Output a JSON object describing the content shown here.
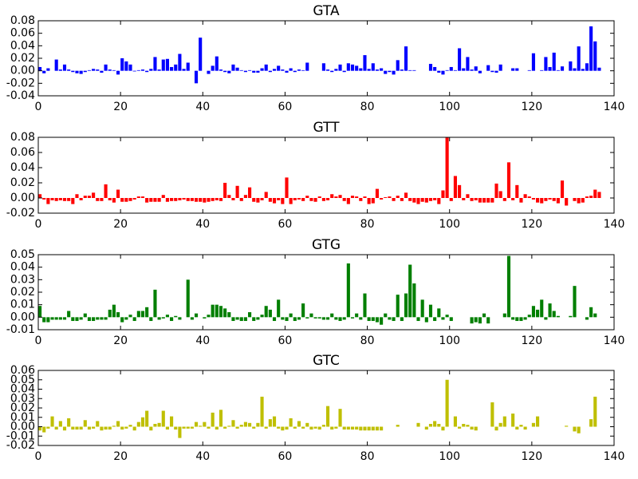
{
  "chart_data": [
    {
      "type": "bar",
      "title": "GTA",
      "color": "#0000ff",
      "x": [
        0,
        1,
        2,
        3,
        4,
        5,
        6,
        7,
        8,
        9,
        10,
        11,
        12,
        13,
        14,
        15,
        16,
        17,
        18,
        19,
        20,
        21,
        22,
        23,
        24,
        25,
        26,
        27,
        28,
        29,
        30,
        31,
        32,
        33,
        34,
        35,
        36,
        37,
        38,
        39,
        40,
        41,
        42,
        43,
        44,
        45,
        46,
        47,
        48,
        49,
        50,
        51,
        52,
        53,
        54,
        55,
        56,
        57,
        58,
        59,
        60,
        61,
        62,
        63,
        64,
        65,
        66,
        67,
        68,
        69,
        70,
        71,
        72,
        73,
        74,
        75,
        76,
        77,
        78,
        79,
        80,
        81,
        82,
        83,
        84,
        85,
        86,
        87,
        88,
        89,
        90,
        91,
        92,
        93,
        94,
        95,
        96,
        97,
        98,
        99,
        100,
        101,
        102,
        103,
        104,
        105,
        106,
        107,
        108,
        109,
        110,
        111,
        112,
        113,
        114,
        115,
        116,
        117,
        118,
        119,
        120,
        121,
        122,
        123,
        124,
        125,
        126,
        127,
        128,
        129,
        130,
        131,
        132,
        133,
        134,
        135,
        136
      ],
      "values": [
        0.006,
        -0.004,
        0.004,
        0,
        0.018,
        0.002,
        0.01,
        0.002,
        -0.002,
        -0.004,
        -0.005,
        -0.002,
        0.001,
        0.003,
        0.002,
        -0.003,
        0.01,
        0.002,
        0.001,
        -0.006,
        0.02,
        0.015,
        0.01,
        -0.001,
        0.001,
        0.002,
        -0.002,
        0.003,
        0.022,
        0.002,
        0.018,
        0.019,
        0.006,
        0.01,
        0.027,
        0.003,
        0.013,
        0,
        -0.02,
        0.053,
        0,
        -0.005,
        0.008,
        0.023,
        0.002,
        -0.002,
        -0.004,
        0.01,
        0.005,
        0.001,
        -0.002,
        0.001,
        -0.003,
        -0.003,
        0.004,
        0.01,
        -0.002,
        0.003,
        0.008,
        0.002,
        -0.003,
        0.004,
        -0.002,
        0.002,
        0.001,
        0.013,
        0,
        0,
        0,
        0.012,
        0.002,
        -0.002,
        0.003,
        0.01,
        -0.002,
        0.012,
        0.01,
        0.008,
        0.004,
        0.025,
        0.003,
        0.012,
        0.002,
        0.004,
        -0.005,
        -0.002,
        -0.006,
        0.017,
        0.002,
        0.039,
        0.001,
        0.001,
        0,
        0,
        0,
        0.011,
        0.006,
        -0.003,
        -0.006,
        0.001,
        0.006,
        0.001,
        0.036,
        0.004,
        0.022,
        0.002,
        0.007,
        -0.004,
        0,
        0.009,
        -0.002,
        -0.003,
        0.01,
        0,
        0,
        0.004,
        0.004,
        0,
        0,
        0.001,
        0.028,
        0,
        0.001,
        0.022,
        0.006,
        0.029,
        0.001,
        0.007,
        0,
        0.015,
        0.004,
        0.039,
        0.003,
        0.012,
        0.071,
        0.047,
        0.005
      ],
      "xlim": [
        0,
        140
      ],
      "xticks": [
        0,
        20,
        40,
        60,
        80,
        100,
        120,
        140
      ],
      "ylim": [
        -0.04,
        0.08
      ],
      "yticks": [
        -0.04,
        -0.02,
        {
          "value": 0,
          "label": "0.00"
        },
        0.02,
        0.04,
        0.06,
        0.08
      ]
    },
    {
      "type": "bar",
      "title": "GTT",
      "color": "#ff0000",
      "x": [
        0,
        1,
        2,
        3,
        4,
        5,
        6,
        7,
        8,
        9,
        10,
        11,
        12,
        13,
        14,
        15,
        16,
        17,
        18,
        19,
        20,
        21,
        22,
        23,
        24,
        25,
        26,
        27,
        28,
        29,
        30,
        31,
        32,
        33,
        34,
        35,
        36,
        37,
        38,
        39,
        40,
        41,
        42,
        43,
        44,
        45,
        46,
        47,
        48,
        49,
        50,
        51,
        52,
        53,
        54,
        55,
        56,
        57,
        58,
        59,
        60,
        61,
        62,
        63,
        64,
        65,
        66,
        67,
        68,
        69,
        70,
        71,
        72,
        73,
        74,
        75,
        76,
        77,
        78,
        79,
        80,
        81,
        82,
        83,
        84,
        85,
        86,
        87,
        88,
        89,
        90,
        91,
        92,
        93,
        94,
        95,
        96,
        97,
        98,
        99,
        100,
        101,
        102,
        103,
        104,
        105,
        106,
        107,
        108,
        109,
        110,
        111,
        112,
        113,
        114,
        115,
        116,
        117,
        118,
        119,
        120,
        121,
        122,
        123,
        124,
        125,
        126,
        127,
        128,
        129,
        130,
        131,
        132,
        133,
        134,
        135,
        136
      ],
      "values": [
        0.005,
        -0.002,
        -0.008,
        -0.003,
        -0.004,
        -0.003,
        -0.004,
        -0.004,
        -0.008,
        0.005,
        -0.003,
        0.003,
        0.003,
        0.007,
        -0.004,
        -0.004,
        0.018,
        -0.003,
        -0.006,
        0.011,
        -0.005,
        -0.005,
        -0.004,
        -0.002,
        0.002,
        0.002,
        -0.006,
        -0.005,
        -0.005,
        -0.005,
        0.004,
        -0.005,
        -0.004,
        -0.004,
        -0.003,
        -0.002,
        -0.004,
        -0.004,
        -0.005,
        -0.005,
        -0.006,
        -0.005,
        -0.004,
        -0.003,
        -0.004,
        0.02,
        0.004,
        -0.003,
        0.016,
        -0.004,
        0.004,
        0.014,
        -0.005,
        -0.006,
        -0.003,
        0.008,
        -0.005,
        -0.007,
        -0.003,
        -0.008,
        0.027,
        -0.008,
        -0.003,
        -0.002,
        -0.004,
        0.003,
        -0.004,
        -0.005,
        0.002,
        -0.004,
        -0.003,
        0.005,
        0.002,
        0.004,
        -0.004,
        -0.008,
        0.003,
        0.002,
        -0.004,
        0.002,
        -0.008,
        -0.007,
        0.012,
        -0.002,
        0.001,
        0.002,
        -0.004,
        0.003,
        -0.004,
        0.007,
        -0.004,
        -0.006,
        -0.008,
        -0.005,
        -0.006,
        -0.004,
        -0.003,
        -0.008,
        0.01,
        0.08,
        -0.004,
        0.029,
        0.017,
        -0.003,
        0.005,
        -0.004,
        -0.003,
        -0.006,
        -0.006,
        -0.006,
        -0.006,
        0.019,
        0.009,
        -0.004,
        0.047,
        -0.003,
        0.017,
        -0.006,
        0.005,
        0.002,
        -0.002,
        -0.006,
        -0.007,
        -0.004,
        -0.002,
        -0.004,
        -0.007,
        0.023,
        -0.01,
        0,
        -0.004,
        -0.007,
        -0.006,
        0.002,
        0.003,
        0.011,
        0.008
      ],
      "xlim": [
        0,
        140
      ],
      "xticks": [
        0,
        20,
        40,
        60,
        80,
        100,
        120,
        140
      ],
      "ylim": [
        -0.02,
        0.08
      ],
      "yticks": [
        -0.02,
        {
          "value": 0,
          "label": "0.00"
        },
        0.02,
        0.04,
        0.06,
        0.08
      ]
    },
    {
      "type": "bar",
      "title": "GTG",
      "color": "#007f00",
      "x": [
        0,
        1,
        2,
        3,
        4,
        5,
        6,
        7,
        8,
        9,
        10,
        11,
        12,
        13,
        14,
        15,
        16,
        17,
        18,
        19,
        20,
        21,
        22,
        23,
        24,
        25,
        26,
        27,
        28,
        29,
        30,
        31,
        32,
        33,
        34,
        35,
        36,
        37,
        38,
        39,
        40,
        41,
        42,
        43,
        44,
        45,
        46,
        47,
        48,
        49,
        50,
        51,
        52,
        53,
        54,
        55,
        56,
        57,
        58,
        59,
        60,
        61,
        62,
        63,
        64,
        65,
        66,
        67,
        68,
        69,
        70,
        71,
        72,
        73,
        74,
        75,
        76,
        77,
        78,
        79,
        80,
        81,
        82,
        83,
        84,
        85,
        86,
        87,
        88,
        89,
        90,
        91,
        92,
        93,
        94,
        95,
        96,
        97,
        98,
        99,
        100,
        101,
        102,
        103,
        104,
        105,
        106,
        107,
        108,
        109,
        110,
        111,
        112,
        113,
        114,
        115,
        116,
        117,
        118,
        119,
        120,
        121,
        122,
        123,
        124,
        125,
        126,
        127,
        128,
        129,
        130,
        131,
        132,
        133,
        134,
        135,
        136
      ],
      "values": [
        0.009,
        -0.004,
        -0.004,
        -0.002,
        -0.002,
        -0.002,
        -0.002,
        0.005,
        -0.003,
        -0.003,
        -0.002,
        0.003,
        -0.003,
        -0.003,
        -0.002,
        -0.002,
        -0.002,
        0.006,
        0.01,
        0.004,
        -0.004,
        -0.002,
        0.002,
        -0.003,
        0.005,
        0.005,
        0.008,
        -0.003,
        0.022,
        -0.002,
        -0.001,
        0.002,
        -0.003,
        0.001,
        -0.002,
        0,
        0.03,
        -0.002,
        0.003,
        0,
        -0.001,
        0.002,
        0.01,
        0.01,
        0.009,
        0.007,
        0.004,
        -0.003,
        -0.002,
        -0.003,
        -0.003,
        0.004,
        -0.003,
        -0.002,
        0.002,
        0.009,
        0.006,
        -0.003,
        0.014,
        -0.002,
        -0.003,
        0.003,
        -0.003,
        -0.002,
        0.011,
        -0.001,
        0.003,
        -0.001,
        -0.001,
        -0.002,
        -0.002,
        0.003,
        -0.002,
        -0.003,
        -0.002,
        0.043,
        -0.001,
        0.003,
        -0.002,
        0.019,
        -0.003,
        -0.003,
        -0.004,
        -0.006,
        0.003,
        -0.002,
        -0.003,
        0.018,
        -0.003,
        0.019,
        0.042,
        0.027,
        -0.003,
        0.014,
        -0.004,
        0.01,
        -0.003,
        0.007,
        -0.002,
        0.002,
        -0.003,
        0,
        0,
        0,
        0,
        -0.005,
        -0.004,
        -0.005,
        0.003,
        -0.005,
        0,
        0,
        0,
        0.003,
        0.049,
        -0.002,
        -0.003,
        -0.003,
        -0.002,
        0.002,
        0.009,
        0.006,
        0.014,
        -0.002,
        0.011,
        0.005,
        0.001,
        0,
        0,
        0.001,
        0.025,
        0,
        0,
        -0.002,
        0.008,
        0.003,
        0
      ],
      "xlim": [
        0,
        140
      ],
      "xticks": [
        0,
        20,
        40,
        60,
        80,
        100,
        120,
        140
      ],
      "ylim": [
        -0.01,
        0.05
      ],
      "yticks": [
        -0.01,
        {
          "value": 0,
          "label": "0.00"
        },
        0.01,
        0.02,
        0.03,
        0.04,
        0.05
      ]
    },
    {
      "type": "bar",
      "title": "GTC",
      "color": "#bfbf00",
      "x": [
        0,
        1,
        2,
        3,
        4,
        5,
        6,
        7,
        8,
        9,
        10,
        11,
        12,
        13,
        14,
        15,
        16,
        17,
        18,
        19,
        20,
        21,
        22,
        23,
        24,
        25,
        26,
        27,
        28,
        29,
        30,
        31,
        32,
        33,
        34,
        35,
        36,
        37,
        38,
        39,
        40,
        41,
        42,
        43,
        44,
        45,
        46,
        47,
        48,
        49,
        50,
        51,
        52,
        53,
        54,
        55,
        56,
        57,
        58,
        59,
        60,
        61,
        62,
        63,
        64,
        65,
        66,
        67,
        68,
        69,
        70,
        71,
        72,
        73,
        74,
        75,
        76,
        77,
        78,
        79,
        80,
        81,
        82,
        83,
        84,
        85,
        86,
        87,
        88,
        89,
        90,
        91,
        92,
        93,
        94,
        95,
        96,
        97,
        98,
        99,
        100,
        101,
        102,
        103,
        104,
        105,
        106,
        107,
        108,
        109,
        110,
        111,
        112,
        113,
        114,
        115,
        116,
        117,
        118,
        119,
        120,
        121,
        122,
        123,
        124,
        125,
        126,
        127,
        128,
        129,
        130,
        131,
        132,
        133,
        134,
        135,
        136
      ],
      "values": [
        -0.004,
        -0.006,
        -0.002,
        0.011,
        -0.003,
        0.006,
        -0.004,
        0.009,
        -0.003,
        -0.003,
        -0.003,
        0.007,
        -0.003,
        -0.002,
        0.006,
        -0.004,
        -0.003,
        -0.003,
        0.001,
        0.006,
        -0.003,
        -0.002,
        0.002,
        -0.004,
        0.005,
        0.01,
        0.017,
        -0.004,
        0.003,
        0.004,
        0.017,
        -0.003,
        0.011,
        -0.003,
        -0.012,
        -0.002,
        -0.002,
        -0.002,
        0.005,
        0.001,
        0.005,
        -0.002,
        0.015,
        -0.003,
        0.018,
        -0.002,
        0.001,
        0.007,
        -0.002,
        0.002,
        0.005,
        0.004,
        -0.002,
        0.004,
        0.032,
        -0.002,
        0.008,
        0.011,
        -0.002,
        -0.004,
        -0.003,
        0.009,
        -0.002,
        0.006,
        -0.002,
        0.004,
        -0.003,
        -0.002,
        -0.003,
        0.002,
        0.022,
        -0.003,
        -0.002,
        0.019,
        -0.003,
        -0.003,
        -0.003,
        -0.003,
        -0.004,
        -0.004,
        -0.004,
        -0.004,
        -0.004,
        -0.004,
        0,
        0,
        0,
        0.002,
        0,
        0,
        0,
        0,
        0.004,
        0,
        -0.003,
        0.003,
        0.006,
        0.003,
        -0.004,
        0.05,
        0,
        0.011,
        -0.002,
        0.003,
        0.002,
        -0.003,
        -0.004,
        0,
        0,
        0,
        0.026,
        -0.004,
        0.004,
        0.011,
        0,
        0.014,
        -0.003,
        0.002,
        -0.003,
        0,
        0.004,
        0.011,
        0,
        0,
        0,
        0,
        0,
        0,
        0.001,
        0,
        -0.005,
        -0.007,
        0,
        0,
        0.008,
        0.032,
        0
      ],
      "xlim": [
        0,
        140
      ],
      "xticks": [
        0,
        20,
        40,
        60,
        80,
        100,
        120,
        140
      ],
      "ylim": [
        -0.02,
        0.06
      ],
      "yticks": [
        -0.02,
        -0.01,
        {
          "value": 0,
          "label": "0.00"
        },
        0.01,
        0.02,
        0.03,
        0.04,
        0.05,
        0.06
      ]
    }
  ]
}
